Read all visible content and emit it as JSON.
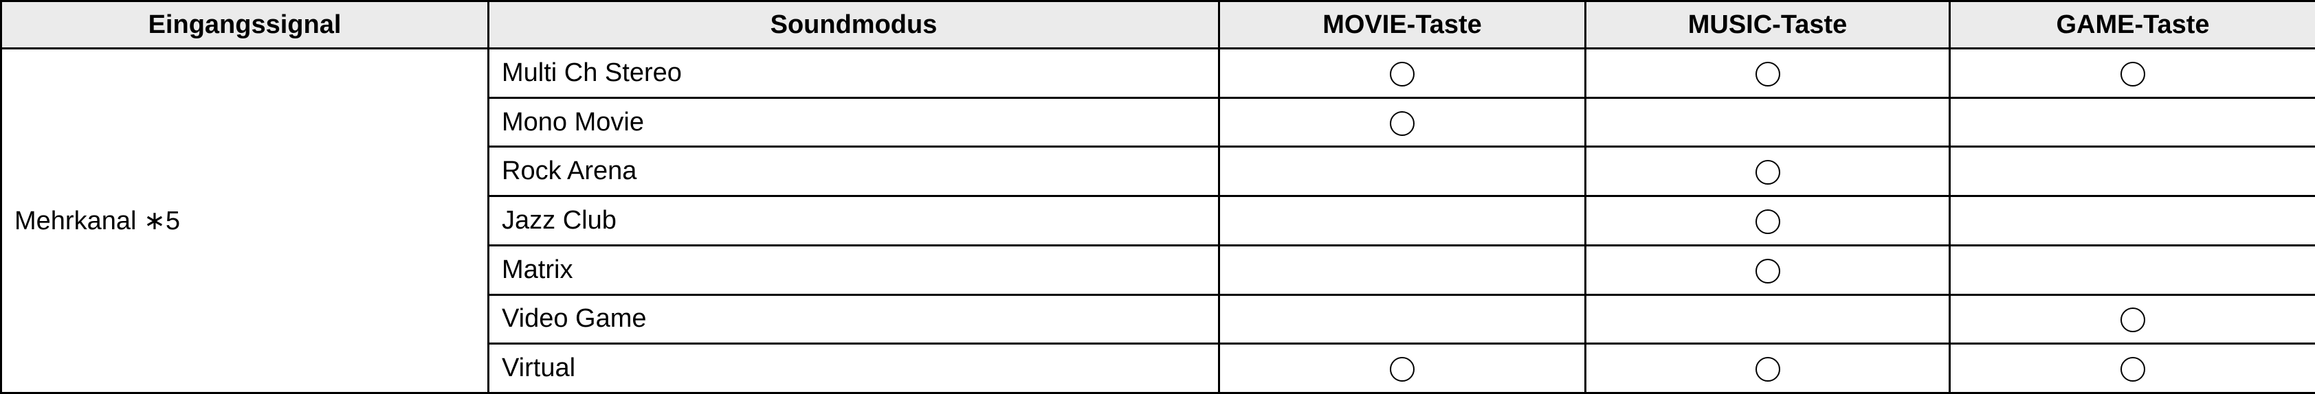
{
  "headers": [
    "Eingangssignal",
    "Soundmodus",
    "MOVIE-Taste",
    "MUSIC-Taste",
    "GAME-Taste"
  ],
  "input_signal": "Mehrkanal ∗5",
  "mark_icon": "circle-icon",
  "rows": [
    {
      "mode": "Multi Ch Stereo",
      "movie": true,
      "music": true,
      "game": true
    },
    {
      "mode": "Mono Movie",
      "movie": true,
      "music": false,
      "game": false
    },
    {
      "mode": "Rock Arena",
      "movie": false,
      "music": true,
      "game": false
    },
    {
      "mode": "Jazz Club",
      "movie": false,
      "music": true,
      "game": false
    },
    {
      "mode": "Matrix",
      "movie": false,
      "music": true,
      "game": false
    },
    {
      "mode": "Video Game",
      "movie": false,
      "music": false,
      "game": true
    },
    {
      "mode": "Virtual",
      "movie": true,
      "music": true,
      "game": true
    }
  ]
}
